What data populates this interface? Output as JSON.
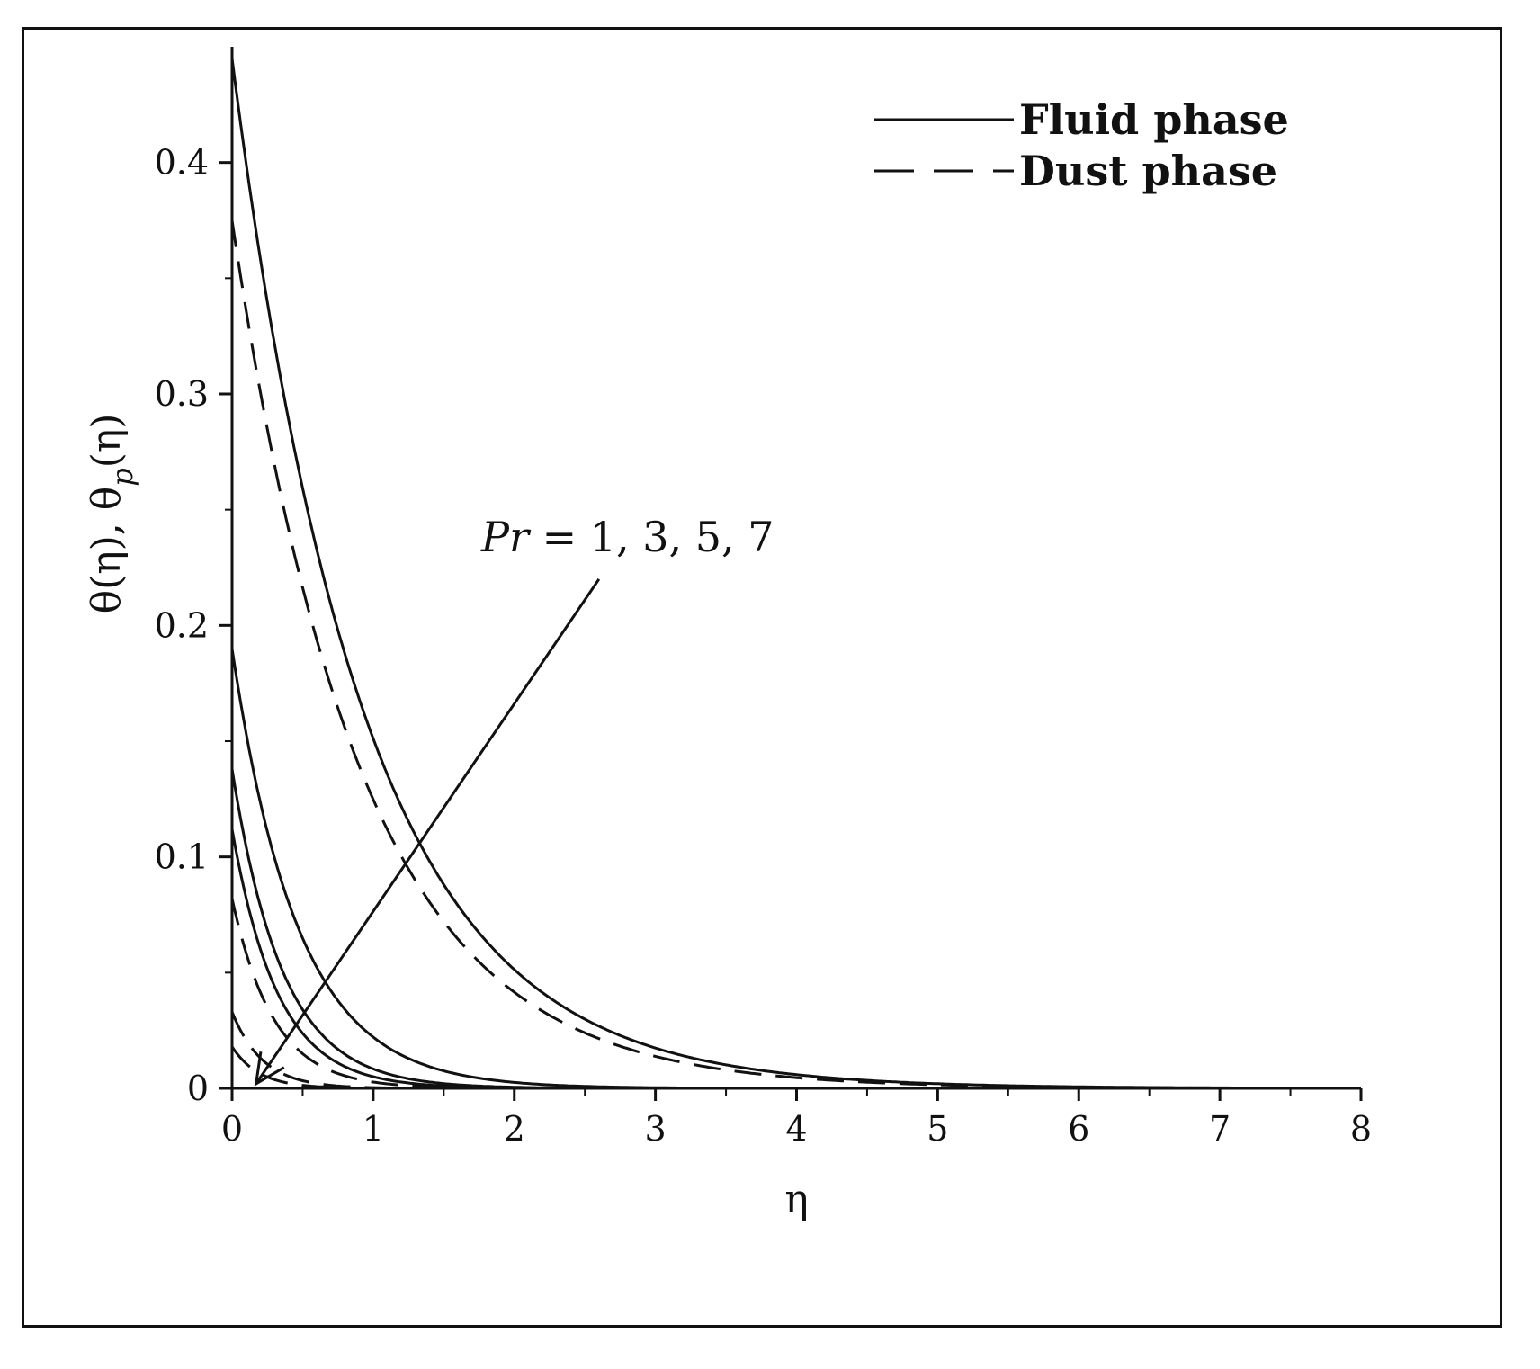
{
  "chart_data": {
    "type": "line",
    "title": "",
    "xlabel": "η",
    "ylabel_parts": [
      "θ(η), θ",
      "p",
      "(η)"
    ],
    "xlim": [
      0,
      8
    ],
    "ylim": [
      0,
      0.45
    ],
    "x_ticks": [
      0,
      1,
      2,
      3,
      4,
      5,
      6,
      7,
      8
    ],
    "y_ticks": [
      0,
      0.1,
      0.2,
      0.3,
      0.4
    ],
    "x_tick_labels": [
      "0",
      "1",
      "2",
      "3",
      "4",
      "5",
      "6",
      "7",
      "8"
    ],
    "y_tick_labels": [
      "0",
      "0.1",
      "0.2",
      "0.3",
      "0.4"
    ],
    "grid": false,
    "legend": {
      "position": "top-right",
      "entries": [
        {
          "label": "Fluid phase",
          "style": "solid"
        },
        {
          "label": "Dust phase",
          "style": "dashed"
        }
      ]
    },
    "annotation": {
      "text_italic": "Pr",
      "text_rest": " = 1, 3, 5, 7",
      "arrow_from": [
        2.6,
        0.22
      ],
      "arrow_to": [
        0.17,
        0.002
      ]
    },
    "series": [
      {
        "style": "solid",
        "y0": 0.445,
        "decay": 1.08
      },
      {
        "style": "dashed",
        "y0": 0.375,
        "decay": 1.1
      },
      {
        "style": "solid",
        "y0": 0.19,
        "decay": 2.15
      },
      {
        "style": "solid",
        "y0": 0.138,
        "decay": 2.8
      },
      {
        "style": "solid",
        "y0": 0.112,
        "decay": 3.1
      },
      {
        "style": "dashed",
        "y0": 0.082,
        "decay": 3.4
      },
      {
        "style": "dashed",
        "y0": 0.033,
        "decay": 4.6
      },
      {
        "style": "dashed",
        "y0": 0.018,
        "decay": 5.2
      }
    ]
  }
}
